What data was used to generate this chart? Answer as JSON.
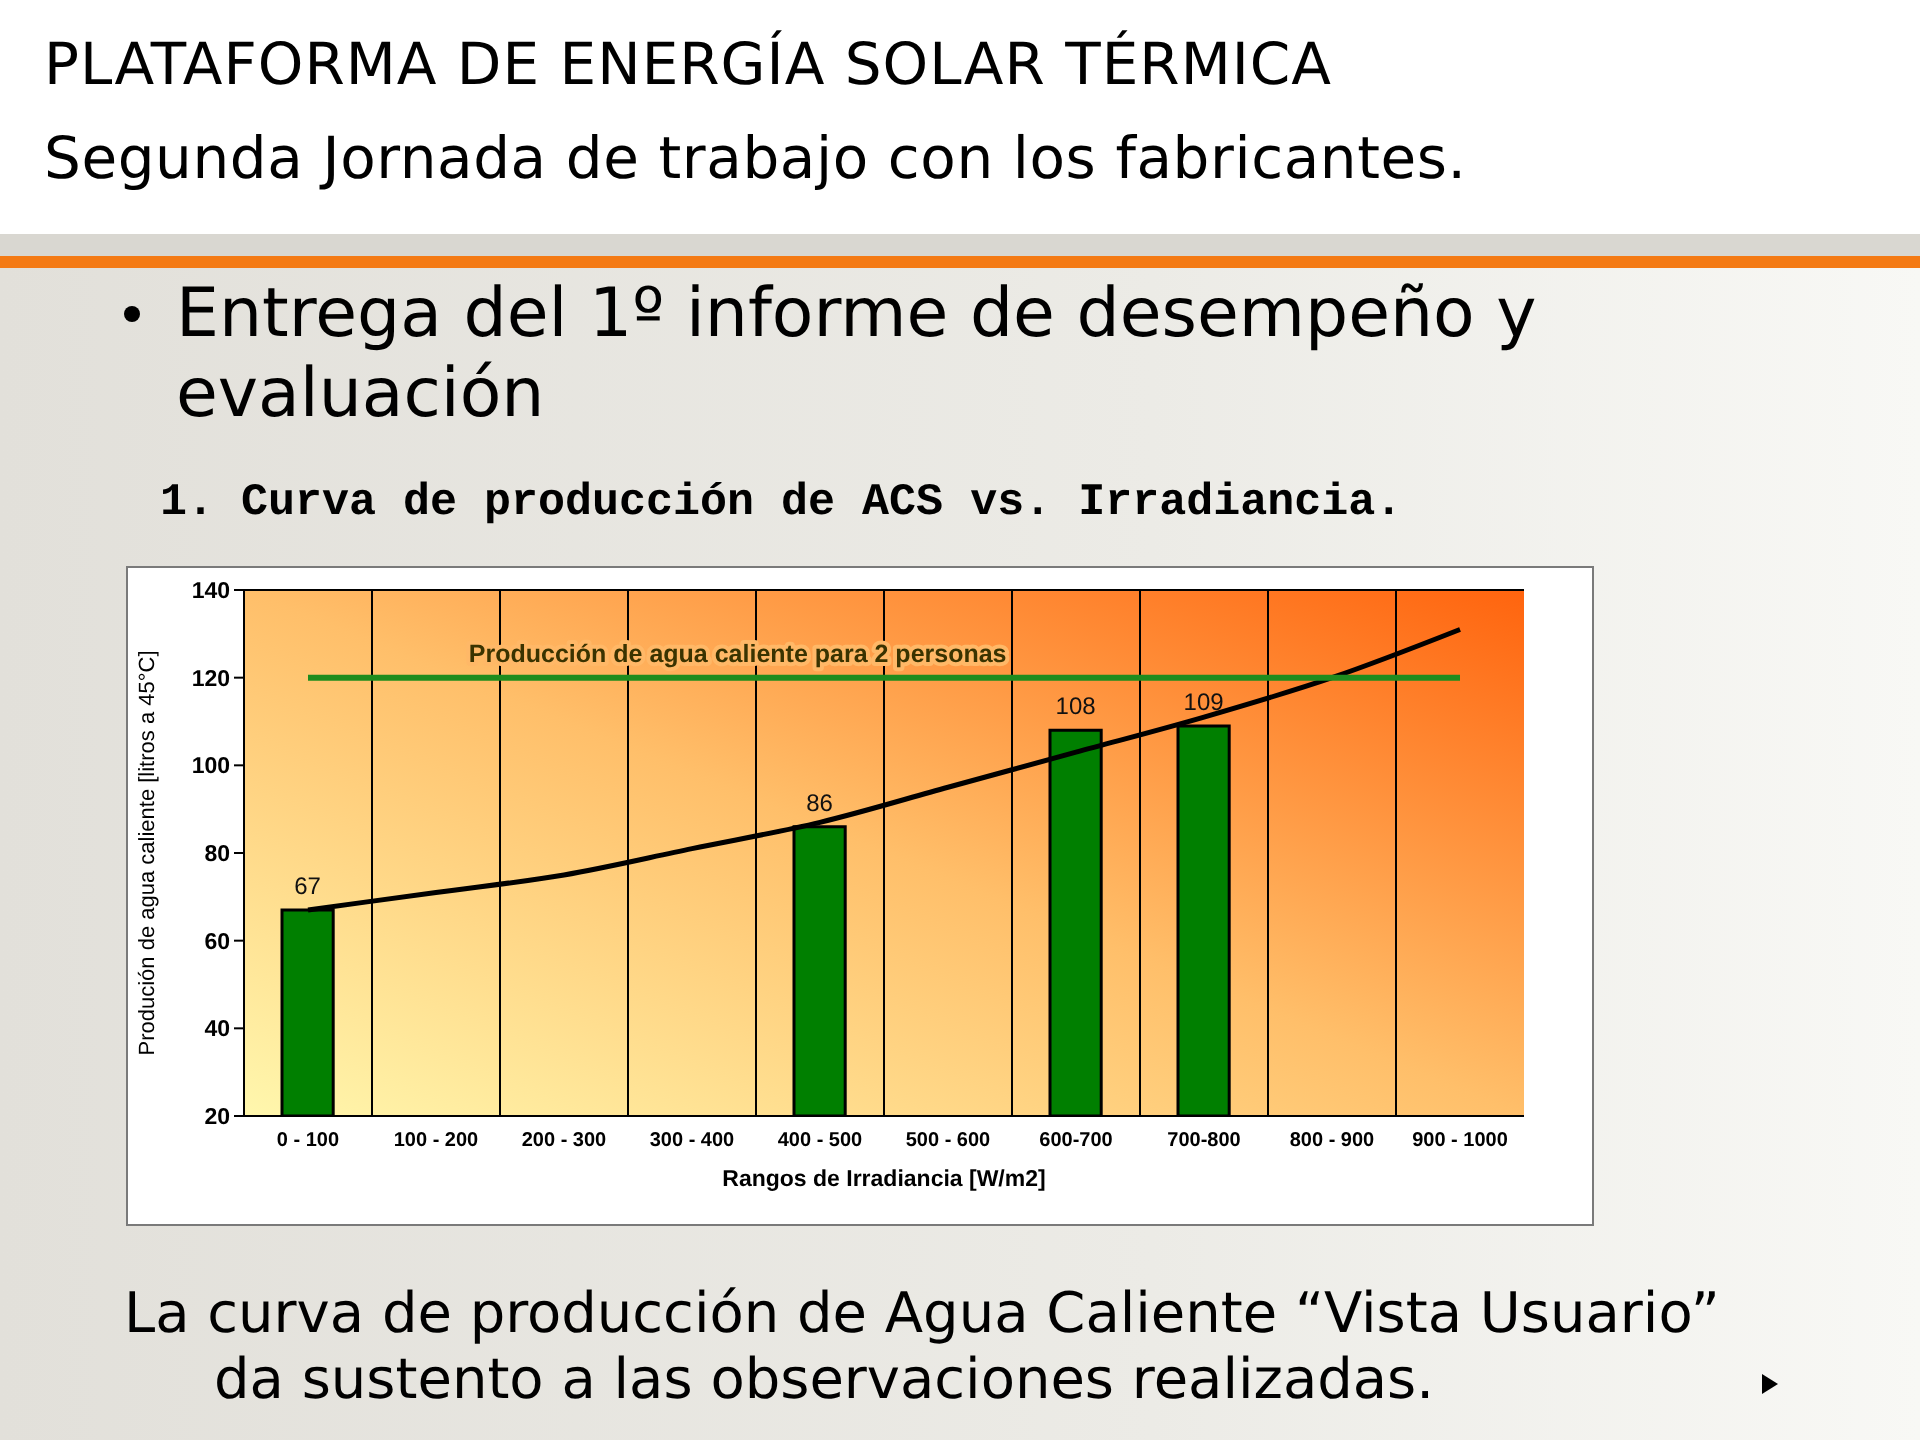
{
  "chart_data": {
    "type": "bar",
    "title": "PLATAFORMA DE ENERGÍA SOLAR TÉRMICA",
    "subtitle": "Segunda Jornada de trabajo con los fabricantes.",
    "annotations": [
      "Entrega del 1º informe de desempeño y evaluación",
      "1. Curva de producción de ACS vs. Irradiancia.",
      "La curva de producción de Agua Caliente “Vista Usuario” da sustento a las observaciones realizadas."
    ],
    "xlabel": "Rangos de Irradiancia [W/m2]",
    "ylabel": "Produción de agua caliente [litros a 45°C]",
    "categories": [
      "0 - 100",
      "100 - 200",
      "200 - 300",
      "300 - 400",
      "400 - 500",
      "500 - 600",
      "600-700",
      "700-800",
      "800 - 900",
      "900 - 1000"
    ],
    "series": [
      {
        "color": "#007f00",
        "values": [
          67,
          null,
          null,
          null,
          86,
          null,
          108,
          109,
          null,
          null
        ],
        "value_labels": [
          "67",
          null,
          null,
          null,
          "86",
          null,
          "108",
          "109",
          null,
          null
        ]
      },
      {
        "type": "line",
        "color": "#000000",
        "values": [
          67,
          71,
          75,
          81,
          87,
          95,
          103,
          111,
          120,
          131
        ]
      }
    ],
    "ylim": [
      20,
      140
    ],
    "yticks": [
      20,
      40,
      60,
      80,
      100,
      120,
      140
    ],
    "ref_lines": [
      {
        "axis": "y",
        "value": 120,
        "label": "Producción de agua caliente para 2 personas",
        "color": "#1e8c1e"
      }
    ],
    "grid": true
  }
}
